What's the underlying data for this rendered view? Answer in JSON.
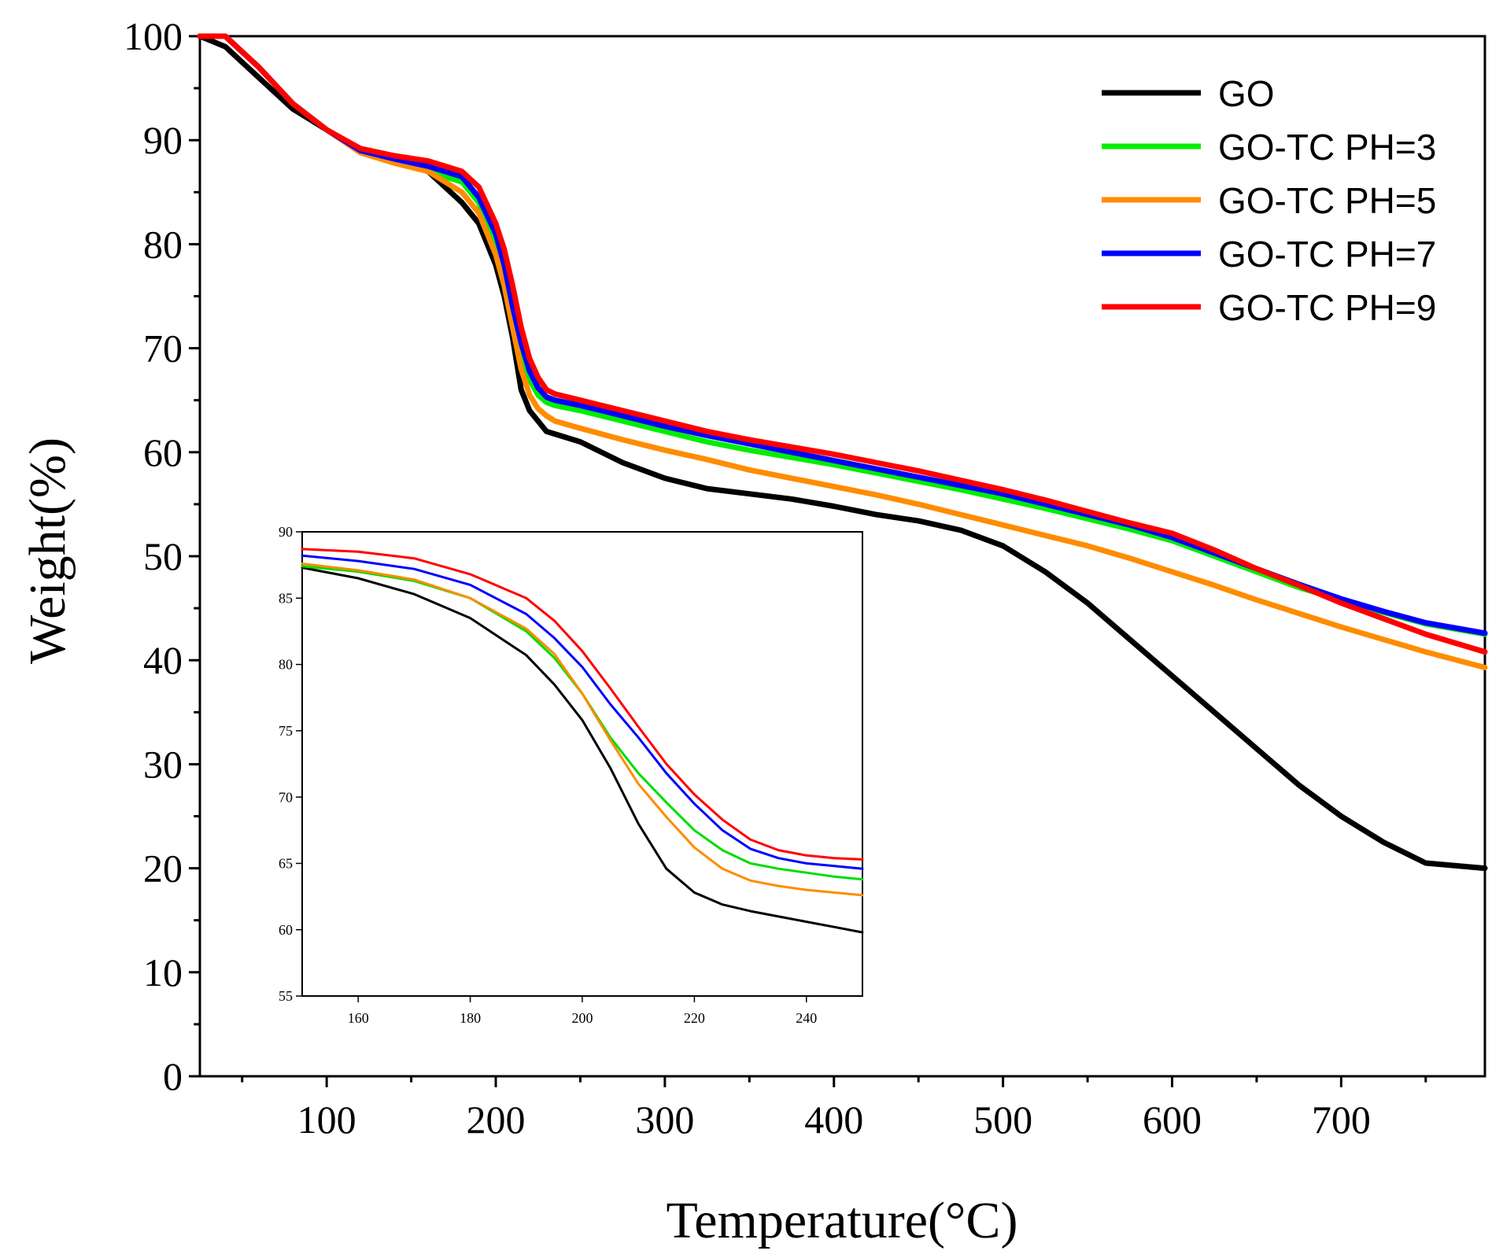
{
  "chart_data": [
    {
      "type": "line",
      "title": "",
      "xlabel": "Temperature(°C)",
      "ylabel": "Weight(%)",
      "xlim": [
        25,
        785
      ],
      "ylim": [
        0,
        100
      ],
      "xticks": [
        100,
        200,
        300,
        400,
        500,
        600,
        700
      ],
      "yticks": [
        0,
        10,
        20,
        30,
        40,
        50,
        60,
        70,
        80,
        90,
        100
      ],
      "legend_position": "top-right",
      "series": [
        {
          "name": "GO",
          "color": "#000000",
          "x": [
            25,
            40,
            60,
            80,
            100,
            120,
            140,
            160,
            180,
            190,
            200,
            205,
            210,
            215,
            220,
            225,
            230,
            250,
            275,
            300,
            325,
            350,
            375,
            400,
            425,
            450,
            475,
            500,
            525,
            550,
            575,
            600,
            625,
            650,
            675,
            700,
            725,
            750,
            785
          ],
          "y": [
            100,
            99,
            96,
            93,
            91,
            89,
            88,
            87,
            84,
            82,
            78,
            75,
            71,
            66,
            64,
            63,
            62,
            61,
            59,
            57.5,
            56.5,
            56,
            55.5,
            54.8,
            54,
            53.4,
            52.5,
            51,
            48.5,
            45.5,
            42,
            38.5,
            35,
            31.5,
            28,
            25,
            22.5,
            20.5,
            20
          ]
        },
        {
          "name": "GO-TC PH=3",
          "color": "#00ee00",
          "x": [
            25,
            40,
            60,
            80,
            100,
            120,
            140,
            160,
            180,
            190,
            200,
            205,
            210,
            215,
            220,
            225,
            230,
            235,
            250,
            275,
            300,
            325,
            350,
            375,
            400,
            425,
            450,
            475,
            500,
            525,
            550,
            575,
            600,
            625,
            650,
            675,
            700,
            725,
            750,
            785
          ],
          "y": [
            100,
            100,
            97,
            93.5,
            91,
            89,
            88,
            87,
            86,
            84,
            80,
            77,
            73,
            69.5,
            67,
            65.5,
            64.8,
            64.5,
            64,
            63,
            62,
            61,
            60.2,
            59.5,
            58.8,
            58,
            57.2,
            56.4,
            55.5,
            54.6,
            53.6,
            52.6,
            51.5,
            50,
            48.5,
            47,
            45.8,
            44.6,
            43.5,
            42.5
          ]
        },
        {
          "name": "GO-TC PH=5",
          "color": "#ff8c00",
          "x": [
            25,
            40,
            60,
            80,
            100,
            120,
            140,
            160,
            180,
            190,
            200,
            205,
            210,
            215,
            220,
            225,
            230,
            235,
            250,
            275,
            300,
            325,
            350,
            375,
            400,
            425,
            450,
            475,
            500,
            525,
            550,
            575,
            600,
            625,
            650,
            675,
            700,
            725,
            750,
            785
          ],
          "y": [
            100,
            100,
            97,
            93.5,
            91,
            88.8,
            87.8,
            87,
            85,
            83,
            79,
            76,
            72,
            68,
            65.5,
            64.2,
            63.5,
            63,
            62.3,
            61.2,
            60.2,
            59.3,
            58.3,
            57.5,
            56.7,
            55.9,
            55,
            54,
            53,
            52,
            51,
            49.8,
            48.5,
            47.2,
            45.8,
            44.5,
            43.2,
            42,
            40.8,
            39.3
          ]
        },
        {
          "name": "GO-TC PH=7",
          "color": "#0000ff",
          "x": [
            25,
            40,
            60,
            80,
            100,
            120,
            140,
            160,
            180,
            190,
            200,
            205,
            210,
            215,
            220,
            225,
            230,
            235,
            250,
            275,
            300,
            325,
            350,
            375,
            400,
            425,
            450,
            475,
            500,
            525,
            550,
            575,
            600,
            625,
            650,
            675,
            700,
            725,
            750,
            785
          ],
          "y": [
            100,
            100,
            97,
            93.5,
            91,
            89,
            88.2,
            87.5,
            86.5,
            84.5,
            81,
            78,
            74,
            70.5,
            67.8,
            66.2,
            65.3,
            65,
            64.5,
            63.5,
            62.5,
            61.6,
            60.8,
            60,
            59.2,
            58.4,
            57.6,
            56.8,
            56,
            55,
            54,
            53,
            51.8,
            50.3,
            48.8,
            47.3,
            45.9,
            44.7,
            43.6,
            42.6
          ]
        },
        {
          "name": "GO-TC PH=9",
          "color": "#ff0000",
          "x": [
            25,
            40,
            60,
            80,
            100,
            120,
            140,
            160,
            180,
            190,
            200,
            205,
            210,
            215,
            220,
            225,
            230,
            235,
            250,
            275,
            300,
            325,
            350,
            375,
            400,
            425,
            450,
            475,
            500,
            525,
            550,
            575,
            600,
            625,
            650,
            675,
            700,
            725,
            750,
            785
          ],
          "y": [
            100,
            100,
            97,
            93.5,
            91,
            89.2,
            88.5,
            88,
            87,
            85.5,
            82,
            79.5,
            76,
            72,
            69,
            67.2,
            66,
            65.6,
            65,
            64,
            63,
            62,
            61.2,
            60.5,
            59.8,
            59,
            58.2,
            57.3,
            56.4,
            55.4,
            54.3,
            53.2,
            52.2,
            50.6,
            48.8,
            47.2,
            45.5,
            44,
            42.5,
            40.8
          ]
        }
      ]
    },
    {
      "type": "line",
      "title": "",
      "xlabel": "",
      "ylabel": "",
      "xlim": [
        150,
        250
      ],
      "ylim": [
        55,
        90
      ],
      "xticks": [
        160,
        180,
        200,
        220,
        240
      ],
      "yticks": [
        55,
        60,
        65,
        70,
        75,
        80,
        85,
        90
      ],
      "series": [
        {
          "name": "GO",
          "color": "#000000",
          "x": [
            150,
            160,
            170,
            180,
            190,
            195,
            200,
            205,
            210,
            215,
            220,
            225,
            230,
            235,
            240,
            245,
            250
          ],
          "y": [
            87.3,
            86.5,
            85.3,
            83.5,
            80.7,
            78.5,
            75.8,
            72.2,
            68,
            64.6,
            62.8,
            61.9,
            61.4,
            61,
            60.6,
            60.2,
            59.8
          ]
        },
        {
          "name": "GO-TC PH=3",
          "color": "#00dd00",
          "x": [
            150,
            160,
            170,
            180,
            190,
            195,
            200,
            205,
            210,
            215,
            220,
            225,
            230,
            235,
            240,
            245,
            250
          ],
          "y": [
            87.4,
            87,
            86.3,
            85,
            82.5,
            80.5,
            77.8,
            74.5,
            71.8,
            69.6,
            67.5,
            66,
            65,
            64.6,
            64.3,
            64,
            63.8
          ]
        },
        {
          "name": "GO-TC PH=5",
          "color": "#ff8c00",
          "x": [
            150,
            160,
            170,
            180,
            190,
            195,
            200,
            205,
            210,
            215,
            220,
            225,
            230,
            235,
            240,
            245,
            250
          ],
          "y": [
            87.6,
            87.1,
            86.4,
            85,
            82.7,
            80.8,
            77.8,
            74.3,
            71,
            68.5,
            66.2,
            64.6,
            63.7,
            63.3,
            63,
            62.8,
            62.6
          ]
        },
        {
          "name": "GO-TC PH=7",
          "color": "#0000ff",
          "x": [
            150,
            160,
            170,
            180,
            190,
            195,
            200,
            205,
            210,
            215,
            220,
            225,
            230,
            235,
            240,
            245,
            250
          ],
          "y": [
            88.2,
            87.8,
            87.2,
            86,
            83.8,
            82,
            79.8,
            77,
            74.5,
            71.8,
            69.5,
            67.5,
            66.1,
            65.4,
            65,
            64.8,
            64.6
          ]
        },
        {
          "name": "GO-TC PH=9",
          "color": "#ff0000",
          "x": [
            150,
            160,
            170,
            180,
            190,
            195,
            200,
            205,
            210,
            215,
            220,
            225,
            230,
            235,
            240,
            245,
            250
          ],
          "y": [
            88.7,
            88.5,
            88,
            86.8,
            85,
            83.3,
            81,
            78.2,
            75.3,
            72.5,
            70.2,
            68.3,
            66.8,
            66,
            65.6,
            65.4,
            65.3
          ]
        }
      ]
    }
  ]
}
